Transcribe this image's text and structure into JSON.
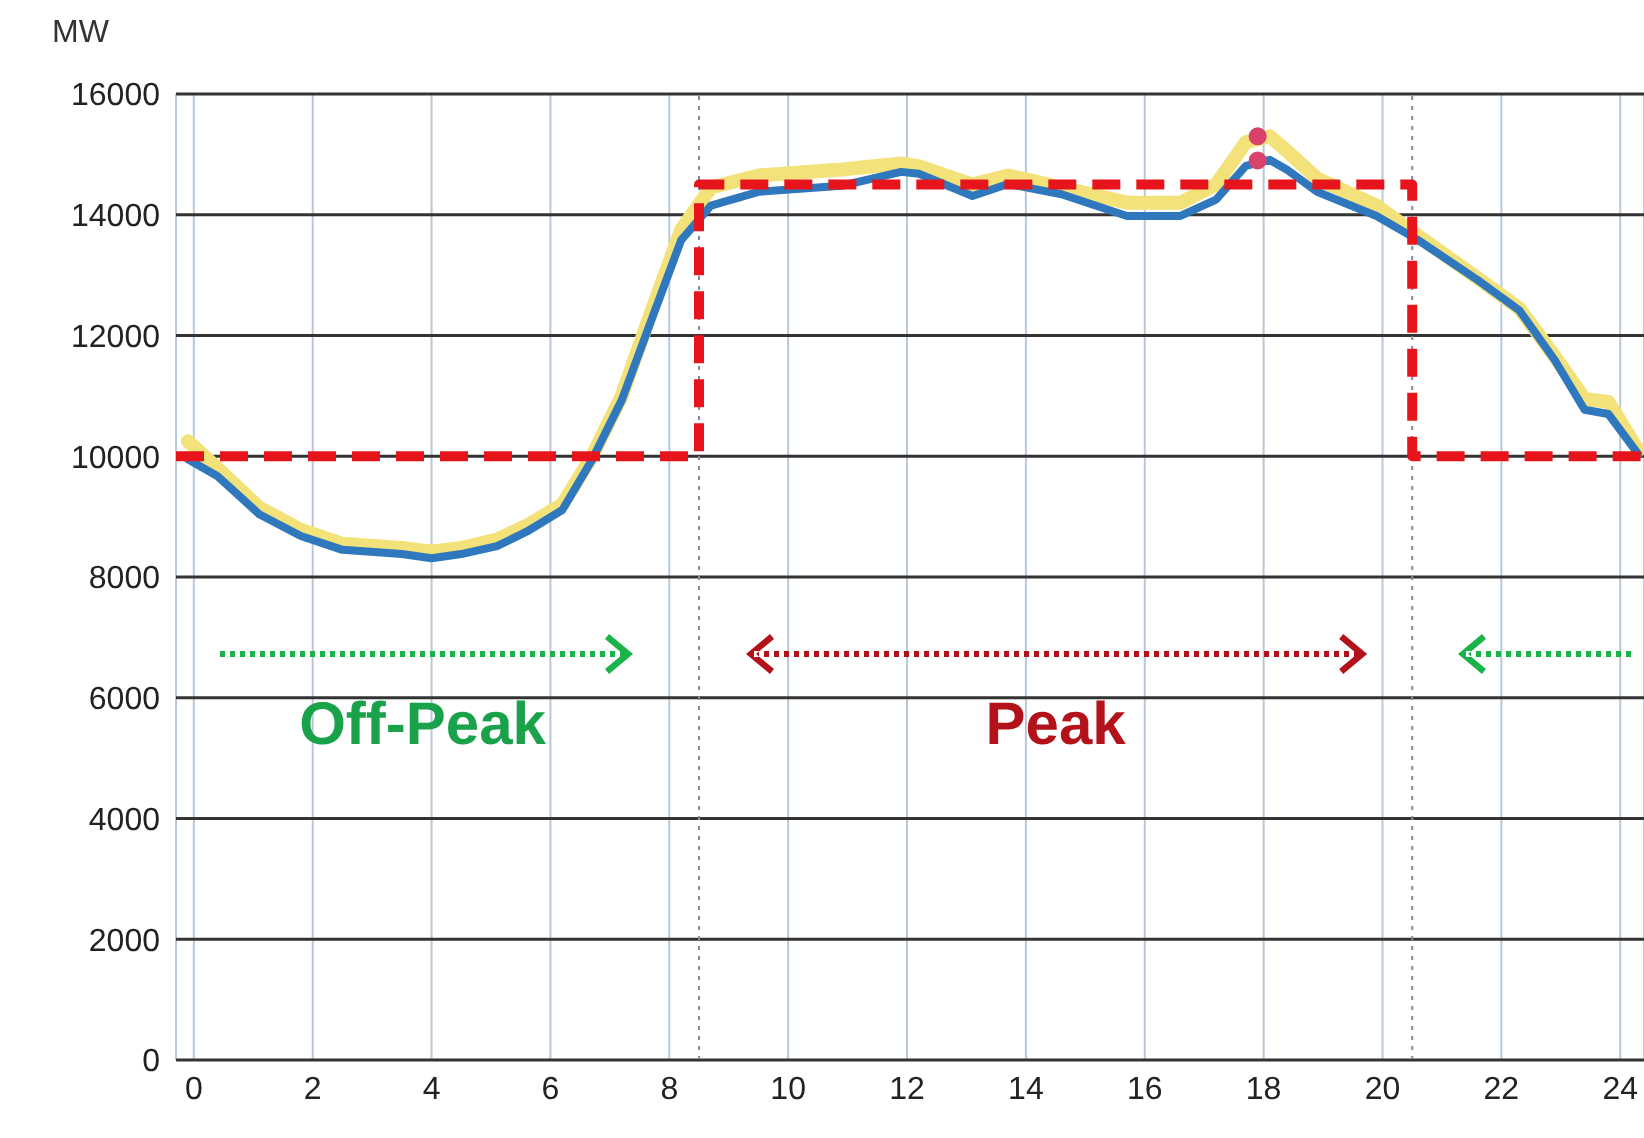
{
  "chart_data": {
    "type": "line",
    "ylabel": "MW",
    "xlim": [
      -0.3,
      24.4
    ],
    "xticks": [
      0,
      2,
      4,
      6,
      8,
      10,
      12,
      14,
      16,
      18,
      20,
      22,
      24
    ],
    "ylim": [
      0,
      16000
    ],
    "yticks": [
      0,
      2000,
      4000,
      6000,
      8000,
      10000,
      12000,
      14000,
      16000
    ],
    "grid": true,
    "marker": "none",
    "line_style": "solid",
    "series": [
      {
        "color": "#f3e27a",
        "x": [
          -0.1,
          0.4,
          1.1,
          1.8,
          2.5,
          3.5,
          4.0,
          4.5,
          5.1,
          5.6,
          6.2,
          6.7,
          7.2,
          7.7,
          8.2,
          8.7,
          9.5,
          10.9,
          11.9,
          12.2,
          13.1,
          13.7,
          14.6,
          15.7,
          16.6,
          17.2,
          17.7,
          18.1,
          18.4,
          18.9,
          19.9,
          20.6,
          21.6,
          22.3,
          22.9,
          23.4,
          23.8,
          24.3
        ],
        "values": [
          10250,
          9800,
          9150,
          8780,
          8550,
          8480,
          8420,
          8480,
          8620,
          8850,
          9200,
          10000,
          11000,
          12400,
          13750,
          14450,
          14650,
          14750,
          14850,
          14800,
          14500,
          14650,
          14450,
          14200,
          14200,
          14500,
          15200,
          15300,
          15050,
          14600,
          14150,
          13650,
          12950,
          12450,
          11650,
          10950,
          10900,
          10100
        ]
      },
      {
        "color": "#2f78bd",
        "x": [
          -0.1,
          0.4,
          1.1,
          1.8,
          2.5,
          3.5,
          4.0,
          4.5,
          5.1,
          5.6,
          6.2,
          6.7,
          7.2,
          7.7,
          8.2,
          8.7,
          9.5,
          10.9,
          11.9,
          12.2,
          13.1,
          13.7,
          14.6,
          15.7,
          16.6,
          17.2,
          17.7,
          18.1,
          18.4,
          18.9,
          19.9,
          20.6,
          21.6,
          22.3,
          22.9,
          23.4,
          23.8,
          24.3
        ],
        "values": [
          9950,
          9670,
          9040,
          8680,
          8450,
          8380,
          8310,
          8380,
          8510,
          8750,
          9110,
          9940,
          10930,
          12260,
          13580,
          14150,
          14380,
          14480,
          14710,
          14680,
          14310,
          14510,
          14340,
          13980,
          13980,
          14250,
          14810,
          14910,
          14740,
          14380,
          13980,
          13580,
          12920,
          12420,
          11590,
          10770,
          10700,
          10040
        ]
      },
      {
        "type": "step",
        "color": "#e8141c",
        "line_style": "dashed",
        "x": [
          -0.3,
          8.5,
          20.5,
          24.4
        ],
        "values": [
          10000,
          14500,
          10000,
          10000
        ]
      },
      {
        "type": "scatter",
        "color": "#d9436b",
        "marker": "circle",
        "x": [
          17.9,
          17.9
        ],
        "values": [
          15300,
          14900
        ]
      }
    ],
    "ref_lines": [
      {
        "axis": "x",
        "value": 8.5,
        "color": "#7a8ea8",
        "line_style": "dotted"
      },
      {
        "axis": "x",
        "value": 20.5,
        "color": "#7a8ea8",
        "line_style": "dotted"
      }
    ],
    "annotations": [
      "Off-Peak",
      "Peak"
    ]
  }
}
